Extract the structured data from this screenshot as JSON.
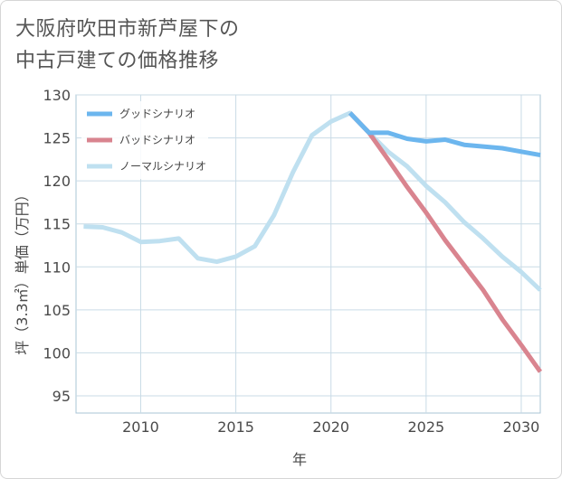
{
  "title_lines": [
    "大阪府吹田市新芦屋下の",
    "中古戸建ての価格推移"
  ],
  "chart_data": {
    "type": "line",
    "title": "大阪府吹田市新芦屋下の中古戸建ての価格推移",
    "xlabel": "年",
    "ylabel": "坪（3.3㎡）単価（万円）",
    "xlim": [
      2006.6,
      2031
    ],
    "ylim": [
      93,
      130
    ],
    "xticks": [
      2010,
      2015,
      2020,
      2025,
      2030
    ],
    "yticks": [
      95,
      100,
      105,
      110,
      115,
      120,
      125,
      130
    ],
    "grid": true,
    "legend_position": "top-left",
    "series": [
      {
        "name": "グッドシナリオ",
        "color": "#6cb6ee",
        "points": [
          [
            2021,
            127.9
          ],
          [
            2022,
            125.6
          ],
          [
            2023,
            125.6
          ],
          [
            2024,
            124.9
          ],
          [
            2025,
            124.6
          ],
          [
            2026,
            124.8
          ],
          [
            2027,
            124.2
          ],
          [
            2028,
            124.0
          ],
          [
            2029,
            123.8
          ],
          [
            2030,
            123.4
          ],
          [
            2031,
            123.0
          ]
        ]
      },
      {
        "name": "バッドシナリオ",
        "color": "#d9848f",
        "points": [
          [
            2021,
            127.9
          ],
          [
            2022,
            125.6
          ],
          [
            2023,
            122.5
          ],
          [
            2024,
            119.3
          ],
          [
            2025,
            116.3
          ],
          [
            2026,
            113.1
          ],
          [
            2027,
            110.2
          ],
          [
            2028,
            107.3
          ],
          [
            2029,
            103.9
          ],
          [
            2030,
            100.9
          ],
          [
            2031,
            97.8
          ]
        ]
      },
      {
        "name": "ノーマルシナリオ",
        "color": "#bfe0f0",
        "points": [
          [
            2007,
            114.7
          ],
          [
            2008,
            114.6
          ],
          [
            2009,
            114.0
          ],
          [
            2010,
            112.9
          ],
          [
            2011,
            113.0
          ],
          [
            2012,
            113.3
          ],
          [
            2013,
            111.0
          ],
          [
            2014,
            110.6
          ],
          [
            2015,
            111.2
          ],
          [
            2016,
            112.4
          ],
          [
            2017,
            116.0
          ],
          [
            2018,
            121.0
          ],
          [
            2019,
            125.3
          ],
          [
            2020,
            126.9
          ],
          [
            2021,
            127.9
          ],
          [
            2022,
            125.6
          ],
          [
            2023,
            123.4
          ],
          [
            2024,
            121.7
          ],
          [
            2025,
            119.4
          ],
          [
            2026,
            117.5
          ],
          [
            2027,
            115.2
          ],
          [
            2028,
            113.3
          ],
          [
            2029,
            111.2
          ],
          [
            2030,
            109.4
          ],
          [
            2031,
            107.3
          ]
        ]
      }
    ]
  }
}
